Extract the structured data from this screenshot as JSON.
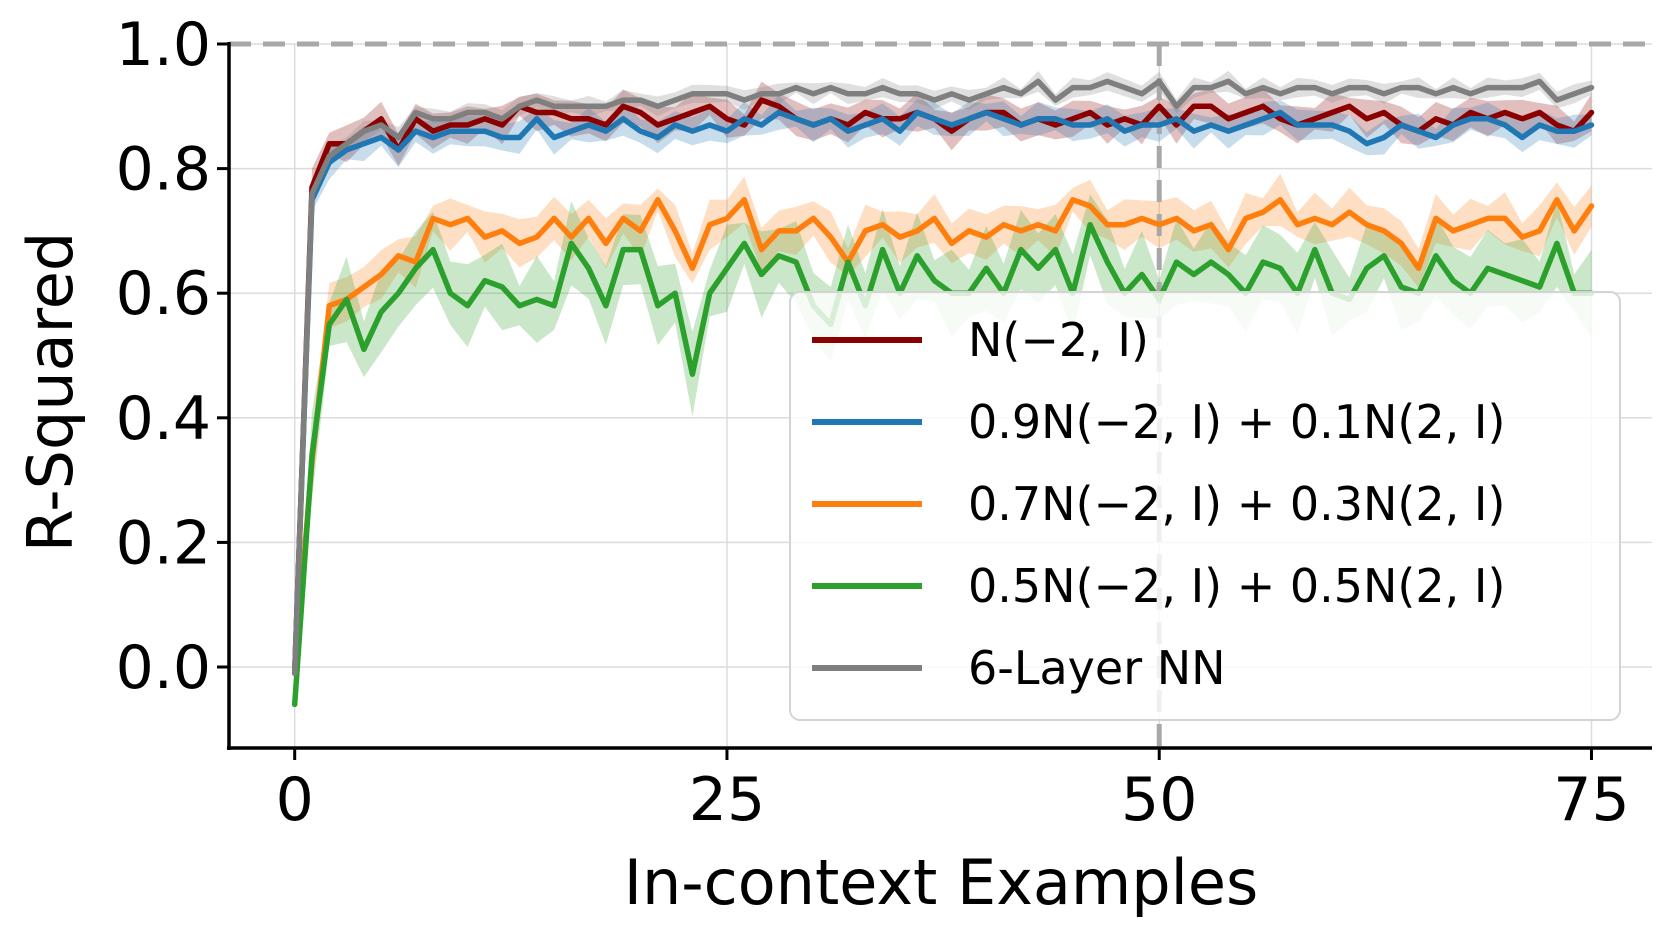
{
  "chart_data": {
    "type": "line",
    "xlabel": "In-context Examples",
    "ylabel": "R-Squared",
    "xlim": [
      -3.8,
      78.5
    ],
    "ylim": [
      -0.13,
      1.0
    ],
    "xticks": [
      0,
      25,
      50,
      75
    ],
    "xtick_labels": [
      "0",
      "25",
      "50",
      "75"
    ],
    "yticks": [
      0.0,
      0.2,
      0.4,
      0.6,
      0.8,
      1.0
    ],
    "ytick_labels": [
      "0.0",
      "0.2",
      "0.4",
      "0.6",
      "0.8",
      "1.0"
    ],
    "grid": true,
    "reference_lines": [
      {
        "orientation": "horizontal",
        "value": 1.0,
        "style": "dashed",
        "color": "#a8a8a8"
      },
      {
        "orientation": "vertical",
        "value": 50,
        "style": "dashed",
        "color": "#a8a8a8"
      }
    ],
    "legend_position": "lower-right",
    "series": [
      {
        "name": "N(−2, I)",
        "color": "#8b0000",
        "band": 0.022,
        "values": [
          -0.01,
          0.77,
          0.84,
          0.84,
          0.86,
          0.88,
          0.83,
          0.88,
          0.86,
          0.87,
          0.87,
          0.88,
          0.87,
          0.9,
          0.89,
          0.89,
          0.88,
          0.88,
          0.87,
          0.9,
          0.89,
          0.87,
          0.88,
          0.89,
          0.9,
          0.88,
          0.87,
          0.91,
          0.9,
          0.88,
          0.87,
          0.88,
          0.87,
          0.89,
          0.88,
          0.88,
          0.89,
          0.88,
          0.86,
          0.88,
          0.89,
          0.89,
          0.87,
          0.88,
          0.87,
          0.88,
          0.89,
          0.87,
          0.88,
          0.87,
          0.9,
          0.87,
          0.9,
          0.9,
          0.88,
          0.89,
          0.9,
          0.88,
          0.87,
          0.88,
          0.89,
          0.9,
          0.88,
          0.89,
          0.87,
          0.86,
          0.88,
          0.87,
          0.89,
          0.88,
          0.89,
          0.88,
          0.89,
          0.87,
          0.86,
          0.89
        ]
      },
      {
        "name": "0.9N(−2, I) + 0.1N(2, I)",
        "color": "#1f77b4",
        "band": 0.02,
        "values": [
          -0.01,
          0.75,
          0.81,
          0.83,
          0.84,
          0.85,
          0.83,
          0.86,
          0.85,
          0.86,
          0.86,
          0.86,
          0.85,
          0.85,
          0.88,
          0.85,
          0.86,
          0.87,
          0.86,
          0.88,
          0.86,
          0.85,
          0.87,
          0.86,
          0.87,
          0.86,
          0.88,
          0.87,
          0.89,
          0.88,
          0.87,
          0.88,
          0.86,
          0.87,
          0.88,
          0.86,
          0.89,
          0.88,
          0.87,
          0.88,
          0.89,
          0.88,
          0.87,
          0.88,
          0.88,
          0.87,
          0.87,
          0.88,
          0.86,
          0.87,
          0.87,
          0.88,
          0.86,
          0.87,
          0.86,
          0.87,
          0.88,
          0.89,
          0.87,
          0.87,
          0.87,
          0.86,
          0.84,
          0.85,
          0.87,
          0.86,
          0.85,
          0.87,
          0.88,
          0.88,
          0.87,
          0.85,
          0.87,
          0.86,
          0.86,
          0.87
        ]
      },
      {
        "name": "0.7N(−2, I) + 0.3N(2, I)",
        "color": "#ff7f0e",
        "band": 0.03,
        "values": [
          -0.01,
          0.33,
          0.58,
          0.59,
          0.61,
          0.63,
          0.66,
          0.65,
          0.72,
          0.71,
          0.72,
          0.69,
          0.7,
          0.68,
          0.69,
          0.72,
          0.69,
          0.72,
          0.68,
          0.72,
          0.7,
          0.75,
          0.7,
          0.64,
          0.71,
          0.72,
          0.75,
          0.67,
          0.7,
          0.7,
          0.72,
          0.69,
          0.65,
          0.7,
          0.71,
          0.69,
          0.7,
          0.72,
          0.68,
          0.7,
          0.69,
          0.71,
          0.7,
          0.71,
          0.7,
          0.75,
          0.74,
          0.71,
          0.71,
          0.72,
          0.71,
          0.72,
          0.7,
          0.71,
          0.67,
          0.72,
          0.73,
          0.75,
          0.71,
          0.72,
          0.71,
          0.73,
          0.71,
          0.7,
          0.68,
          0.64,
          0.72,
          0.7,
          0.71,
          0.72,
          0.72,
          0.69,
          0.7,
          0.75,
          0.7,
          0.74
        ]
      },
      {
        "name": "0.5N(−2, I) + 0.5N(2, I)",
        "color": "#2ca02c",
        "band": 0.05,
        "values": [
          -0.06,
          0.34,
          0.55,
          0.59,
          0.51,
          0.57,
          0.6,
          0.64,
          0.67,
          0.6,
          0.58,
          0.62,
          0.61,
          0.58,
          0.59,
          0.58,
          0.68,
          0.64,
          0.58,
          0.67,
          0.67,
          0.58,
          0.6,
          0.47,
          0.6,
          0.64,
          0.68,
          0.63,
          0.66,
          0.65,
          0.58,
          0.55,
          0.65,
          0.58,
          0.67,
          0.6,
          0.66,
          0.62,
          0.6,
          0.6,
          0.64,
          0.6,
          0.67,
          0.64,
          0.67,
          0.6,
          0.71,
          0.65,
          0.6,
          0.63,
          0.59,
          0.65,
          0.63,
          0.65,
          0.63,
          0.6,
          0.65,
          0.64,
          0.6,
          0.67,
          0.6,
          0.59,
          0.64,
          0.66,
          0.61,
          0.6,
          0.66,
          0.62,
          0.6,
          0.64,
          0.63,
          0.62,
          0.61,
          0.68,
          0.6,
          0.6
        ]
      },
      {
        "name": "6-Layer NN",
        "color": "#7f7f7f",
        "band": 0.012,
        "values": [
          -0.01,
          0.76,
          0.82,
          0.84,
          0.86,
          0.87,
          0.85,
          0.89,
          0.88,
          0.88,
          0.89,
          0.89,
          0.88,
          0.9,
          0.91,
          0.9,
          0.9,
          0.9,
          0.9,
          0.91,
          0.91,
          0.9,
          0.91,
          0.92,
          0.92,
          0.92,
          0.91,
          0.92,
          0.92,
          0.93,
          0.92,
          0.93,
          0.92,
          0.92,
          0.93,
          0.92,
          0.92,
          0.91,
          0.92,
          0.91,
          0.92,
          0.93,
          0.92,
          0.94,
          0.91,
          0.93,
          0.93,
          0.94,
          0.93,
          0.92,
          0.94,
          0.9,
          0.93,
          0.93,
          0.94,
          0.92,
          0.93,
          0.92,
          0.93,
          0.93,
          0.92,
          0.93,
          0.93,
          0.92,
          0.93,
          0.93,
          0.92,
          0.93,
          0.92,
          0.93,
          0.93,
          0.93,
          0.94,
          0.91,
          0.92,
          0.93
        ]
      }
    ]
  }
}
